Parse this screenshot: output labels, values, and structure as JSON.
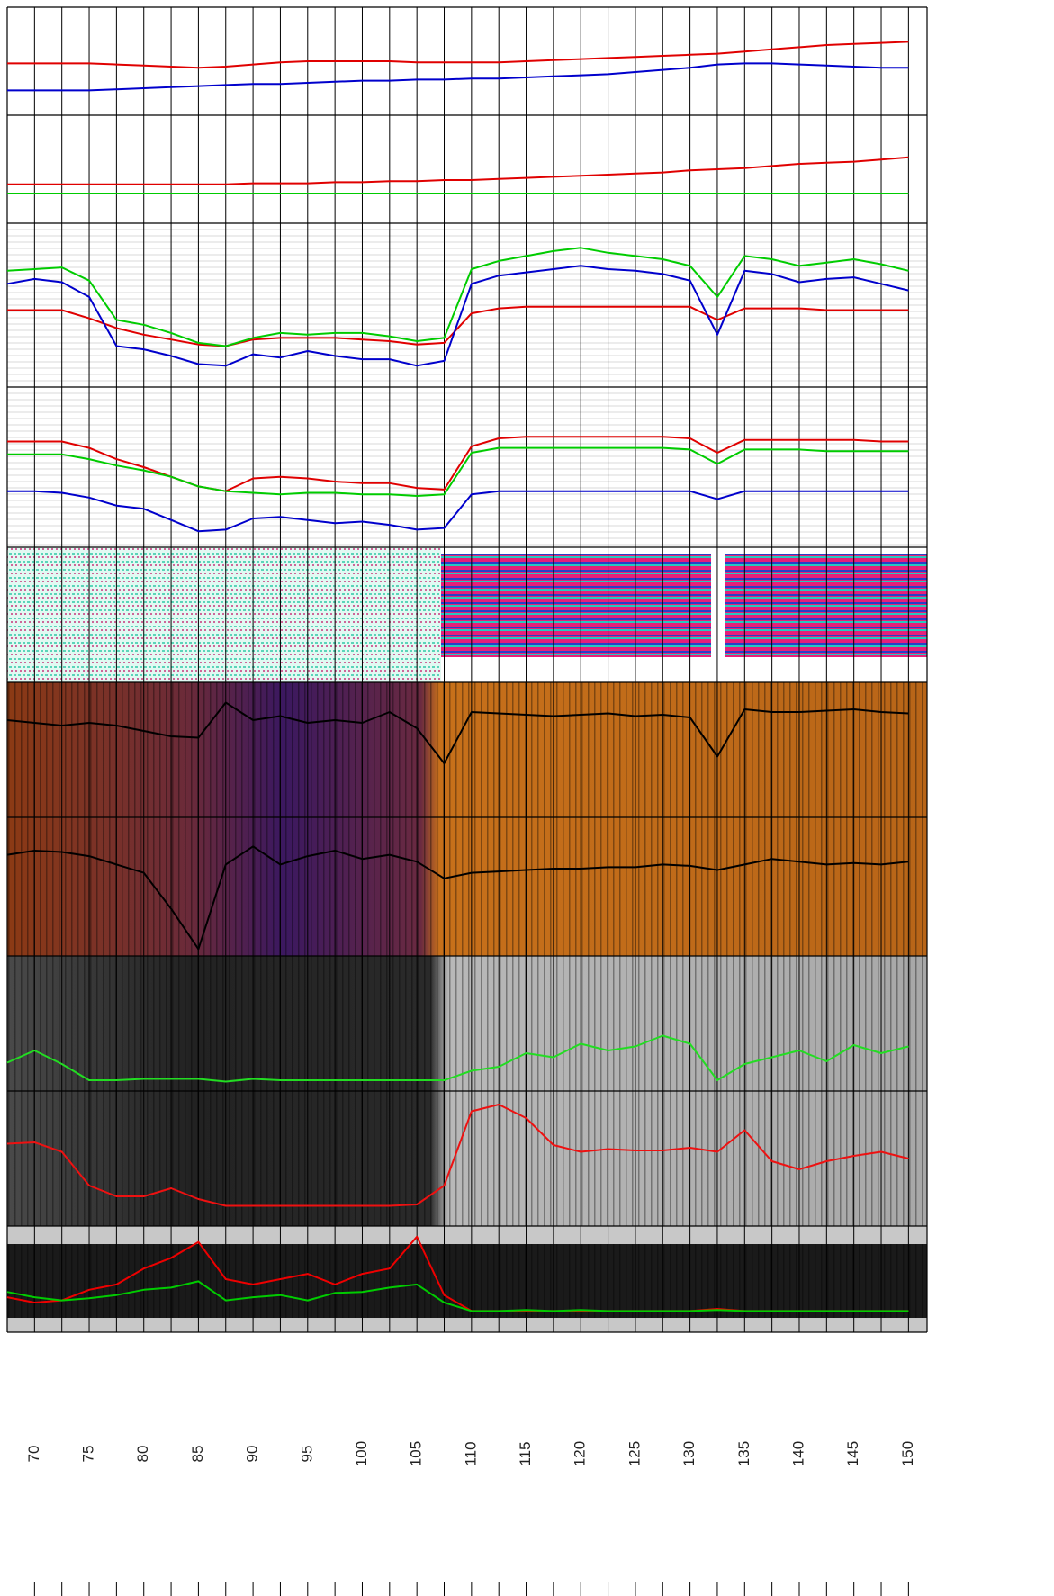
{
  "chart_data": {
    "type": "line",
    "x": [
      67.5,
      70,
      72.5,
      75,
      77.5,
      80,
      82.5,
      85,
      87.5,
      90,
      92.5,
      95,
      97.5,
      100,
      102.5,
      105,
      107.5,
      110,
      112.5,
      115,
      117.5,
      120,
      122.5,
      125,
      127.5,
      130,
      132.5,
      135,
      137.5,
      140,
      142.5,
      145,
      147.5,
      150
    ],
    "xlim": [
      67.5,
      151.7
    ],
    "xticks": [
      70,
      75,
      80,
      85,
      90,
      95,
      100,
      105,
      110,
      115,
      120,
      125,
      130,
      135,
      140,
      145,
      150
    ],
    "xminor": [
      72.5,
      77.5,
      82.5,
      87.5,
      92.5,
      97.5,
      102.5,
      107.5,
      112.5,
      117.5,
      122.5,
      127.5,
      132.5,
      137.5,
      142.5,
      147.5
    ],
    "tracks": [
      {
        "ylim": [
          0,
          100
        ],
        "series": [
          {
            "color": "#e00000",
            "values": [
              48,
              48,
              48,
              48,
              47,
              46,
              45,
              44,
              45,
              47,
              49,
              50,
              50,
              50,
              50,
              49,
              49,
              49,
              49,
              50,
              51,
              52,
              53,
              54,
              55,
              56,
              57,
              59,
              61,
              63,
              65,
              66,
              67,
              68
            ]
          },
          {
            "color": "#0000cc",
            "values": [
              23,
              23,
              23,
              23,
              24,
              25,
              26,
              27,
              28,
              29,
              29,
              30,
              31,
              32,
              32,
              33,
              33,
              34,
              34,
              35,
              36,
              37,
              38,
              40,
              42,
              44,
              47,
              48,
              48,
              47,
              46,
              45,
              44,
              44
            ]
          }
        ]
      },
      {
        "ylim": [
          0,
          100
        ],
        "series": [
          {
            "color": "#e00000",
            "values": [
              36,
              36,
              36,
              36,
              36,
              36,
              36,
              36,
              36,
              37,
              37,
              37,
              38,
              38,
              39,
              39,
              40,
              40,
              41,
              42,
              43,
              44,
              45,
              46,
              47,
              49,
              50,
              51,
              53,
              55,
              56,
              57,
              59,
              61
            ]
          },
          {
            "color": "#00cc00",
            "values": [
              27.5,
              27.5,
              27.5,
              27.5,
              27.5,
              27.5,
              27.5,
              27.5,
              27.5,
              27.5,
              27.5,
              27.5,
              27.5,
              27.5,
              27.5,
              27.5,
              27.5,
              27.5,
              27.5,
              27.5,
              27.5,
              27.5,
              27.5,
              27.5,
              27.5,
              27.5,
              27.5,
              27.5,
              27.5,
              27.5,
              27.5,
              27.5,
              27.5,
              27.5
            ]
          }
        ]
      },
      {
        "ylim": [
          0,
          100
        ],
        "series": [
          {
            "color": "#e00000",
            "values": [
              47,
              47,
              47,
              42,
              36,
              32,
              29,
              26,
              25,
              29,
              30,
              30,
              30,
              29,
              28,
              26,
              27,
              45,
              48,
              49,
              49,
              49,
              49,
              49,
              49,
              49,
              41,
              48,
              48,
              48,
              47,
              47,
              47,
              47
            ]
          },
          {
            "color": "#00cc00",
            "values": [
              71,
              72,
              73,
              65,
              41,
              38,
              33,
              27,
              25,
              30,
              33,
              32,
              33,
              33,
              31,
              28,
              30,
              72,
              77,
              80,
              83,
              85,
              82,
              80,
              78,
              74,
              55,
              80,
              78,
              74,
              76,
              78,
              75,
              71
            ]
          },
          {
            "color": "#0000cc",
            "values": [
              63,
              66,
              64,
              55,
              25,
              23,
              19,
              14,
              13,
              20,
              18,
              22,
              19,
              17,
              17,
              13,
              16,
              63,
              68,
              70,
              72,
              74,
              72,
              71,
              69,
              65,
              32,
              71,
              69,
              64,
              66,
              67,
              63,
              59
            ]
          }
        ]
      },
      {
        "ylim": [
          0,
          100
        ],
        "series": [
          {
            "color": "#e00000",
            "values": [
              66,
              66,
              66,
              62,
              55,
              50,
              44,
              38,
              35,
              43,
              44,
              43,
              41,
              40,
              40,
              37,
              36,
              63,
              68,
              69,
              69,
              69,
              69,
              69,
              69,
              68,
              59,
              67,
              67,
              67,
              67,
              67,
              66,
              66
            ]
          },
          {
            "color": "#00cc00",
            "values": [
              58,
              58,
              58,
              55,
              51,
              48,
              44,
              38,
              35,
              34,
              33,
              34,
              34,
              33,
              33,
              32,
              33,
              59,
              62,
              62,
              62,
              62,
              62,
              62,
              62,
              61,
              52,
              61,
              61,
              61,
              60,
              60,
              60,
              60
            ]
          },
          {
            "color": "#0000cc",
            "values": [
              35,
              35,
              34,
              31,
              26,
              24,
              17,
              10,
              11,
              18,
              19,
              17,
              15,
              16,
              14,
              11,
              12,
              33,
              35,
              35,
              35,
              35,
              35,
              35,
              35,
              35,
              30,
              35,
              35,
              35,
              35,
              35,
              35,
              35
            ]
          }
        ]
      },
      {
        "ylim": [
          0,
          100
        ],
        "series": [
          {
            "color": "#000000",
            "values": [
              72,
              70,
              68,
              70,
              68,
              64,
              60,
              59,
              85,
              72,
              75,
              70,
              72,
              70,
              78,
              66,
              40,
              78,
              77,
              76,
              75,
              76,
              77,
              75,
              76,
              74,
              45,
              80,
              78,
              78,
              79,
              80,
              78,
              77
            ]
          }
        ]
      },
      {
        "ylim": [
          0,
          100
        ],
        "series": [
          {
            "color": "#000000",
            "values": [
              73,
              76,
              75,
              72,
              66,
              60,
              34,
              5,
              66,
              79,
              66,
              72,
              76,
              70,
              73,
              68,
              56,
              60,
              61,
              62,
              63,
              63,
              64,
              64,
              66,
              65,
              62,
              66,
              70,
              68,
              66,
              67,
              66,
              68
            ]
          }
        ]
      },
      {
        "ylim": [
          0,
          100
        ],
        "series": [
          {
            "color": "#22dd22",
            "values": [
              21,
              30,
              20,
              8,
              8,
              9,
              9,
              9,
              7,
              9,
              8,
              8,
              8,
              8,
              8,
              8,
              8,
              15,
              18,
              28,
              25,
              35,
              30,
              33,
              41,
              35,
              8,
              20,
              25,
              30,
              22,
              34,
              28,
              33
            ]
          }
        ]
      },
      {
        "ylim": [
          0,
          100
        ],
        "series": [
          {
            "color": "#ee1111",
            "values": [
              61,
              62,
              55,
              30,
              22,
              22,
              28,
              20,
              15,
              15,
              15,
              15,
              15,
              15,
              15,
              16,
              30,
              85,
              90,
              80,
              60,
              55,
              57,
              56,
              56,
              58,
              55,
              71,
              48,
              42,
              48,
              52,
              55,
              50
            ]
          }
        ]
      },
      {
        "ylim": [
          0,
          100
        ],
        "series": [
          {
            "color": "#ee0000",
            "values": [
              33,
              28,
              30,
              40,
              45,
              60,
              70,
              85,
              50,
              45,
              50,
              55,
              45,
              55,
              60,
              90,
              35,
              20,
              20,
              20,
              20,
              20,
              20,
              20,
              20,
              20,
              22,
              20,
              20,
              20,
              20,
              20,
              20,
              20
            ]
          },
          {
            "color": "#00cc00",
            "values": [
              38,
              33,
              30,
              32,
              35,
              40,
              42,
              48,
              30,
              33,
              35,
              30,
              37,
              38,
              42,
              45,
              28,
              20,
              20,
              21,
              20,
              21,
              20,
              20,
              20,
              20,
              21,
              20,
              20,
              20,
              20,
              20,
              20,
              20
            ]
          }
        ]
      }
    ]
  }
}
